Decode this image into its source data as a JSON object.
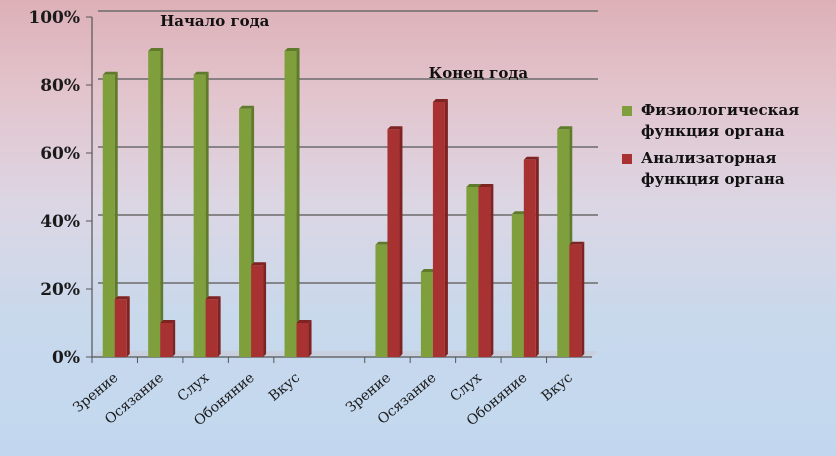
{
  "chart_data": {
    "type": "bar",
    "yticks": [
      "0%",
      "20%",
      "40%",
      "60%",
      "80%",
      "100%"
    ],
    "ylim": [
      0,
      100
    ],
    "grid": true,
    "legend_position": "right",
    "groups": [
      {
        "title": "Начало года",
        "categories": [
          "Зрение",
          "Осязание",
          "Слух",
          "Обоняние",
          "Вкус"
        ],
        "series": [
          {
            "name": "Физиологическая функция органа",
            "values": [
              83,
              90,
              83,
              73,
              90
            ]
          },
          {
            "name": "Анализаторная функция органа",
            "values": [
              17,
              10,
              17,
              27,
              10
            ]
          }
        ]
      },
      {
        "title": "Конец года",
        "categories": [
          "Зрение",
          "Осязание",
          "Слух",
          "Обоняние",
          "Вкус"
        ],
        "series": [
          {
            "name": "Физиологическая функция органа",
            "values": [
              33,
              25,
              50,
              42,
              67
            ]
          },
          {
            "name": "Анализаторная функция органа",
            "values": [
              67,
              75,
              50,
              58,
              33
            ]
          }
        ]
      }
    ],
    "legend": [
      {
        "label": "Физиологическая функция органа",
        "color": "#7f9e3c"
      },
      {
        "label": "Анализаторная функция органа",
        "color": "#a83232"
      }
    ]
  }
}
